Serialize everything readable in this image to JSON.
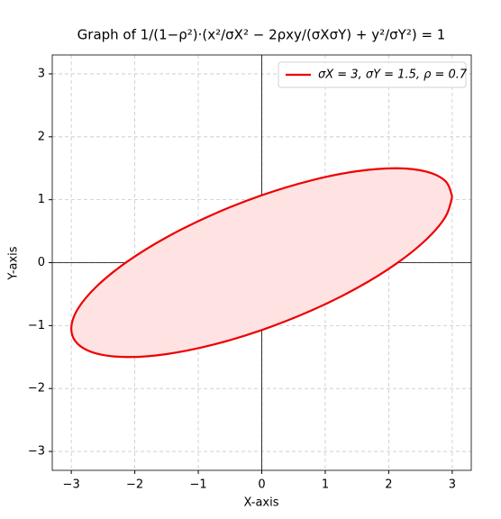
{
  "chart_data": {
    "type": "line",
    "title": "Graph of 1/(1−ρ²)·(x²/σX² − 2ρxy/(σXσY) + y²/σY²) = 1",
    "xlabel": "X-axis",
    "ylabel": "Y-axis",
    "x": [
      3,
      2.898,
      2.598,
      2.121,
      1.5,
      0.776,
      0,
      -0.776,
      -1.5,
      -2.121,
      -2.598,
      -2.898,
      -3,
      -2.898,
      -2.598,
      -2.121,
      -1.5,
      -0.776,
      0,
      0.776,
      1.5,
      2.121,
      2.598,
      2.898,
      3
    ],
    "series": [
      {
        "name": "σX = 3, σY = 1.5, ρ = 0.7",
        "color": "#ee0000",
        "fill": "#ffe3e3",
        "values": [
          1.05,
          1.291,
          1.445,
          1.5,
          1.453,
          1.306,
          1.071,
          0.763,
          0.403,
          0.015,
          -0.374,
          -0.737,
          -1.05,
          -1.291,
          -1.445,
          -1.5,
          -1.453,
          -1.306,
          -1.071,
          -0.763,
          -0.403,
          -0.015,
          0.374,
          0.737,
          1.05
        ]
      }
    ],
    "xlim": [
      -3.3,
      3.3
    ],
    "ylim": [
      -3.3,
      3.3
    ],
    "xticks": [
      {
        "value": -3,
        "label": "−3"
      },
      {
        "value": -2,
        "label": "−2"
      },
      {
        "value": -1,
        "label": "−1"
      },
      0,
      1,
      2,
      3
    ],
    "yticks": [
      {
        "value": -3,
        "label": "−3"
      },
      {
        "value": -2,
        "label": "−2"
      },
      {
        "value": -1,
        "label": "−1"
      },
      0,
      1,
      2,
      3
    ],
    "grid": true,
    "legend": "upper right"
  }
}
